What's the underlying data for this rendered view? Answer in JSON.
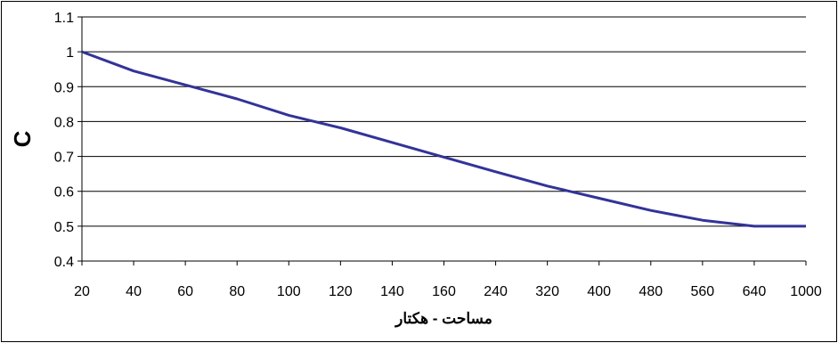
{
  "chart_data": {
    "type": "line",
    "title": "",
    "xlabel": "مساحت - هکتار",
    "ylabel": "C",
    "categories": [
      "20",
      "40",
      "60",
      "80",
      "100",
      "120",
      "140",
      "160",
      "240",
      "320",
      "400",
      "480",
      "560",
      "640",
      "1000"
    ],
    "series": [
      {
        "values": [
          1.0,
          0.945,
          0.905,
          0.865,
          0.818,
          0.782,
          0.74,
          0.698,
          0.656,
          0.615,
          0.58,
          0.545,
          0.517,
          0.5,
          0.5
        ],
        "color": "#333399"
      }
    ],
    "ylim": [
      0.4,
      1.1
    ],
    "yticks": [
      "0.4",
      "0.5",
      "0.6",
      "0.7",
      "0.8",
      "0.9",
      "1",
      "1.1"
    ],
    "grid": "horizontal",
    "legend": "none"
  }
}
